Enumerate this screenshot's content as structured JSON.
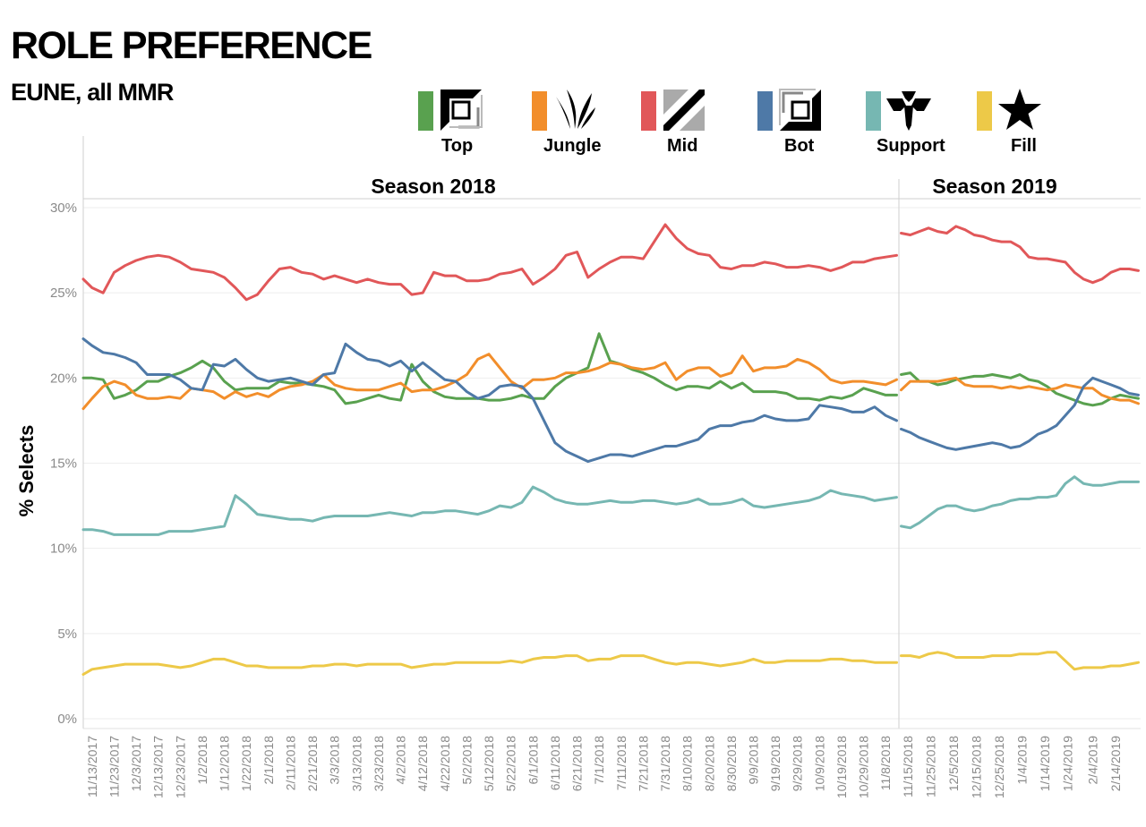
{
  "title": "ROLE PREFERENCE",
  "subtitle": "EUNE, all MMR",
  "legend": [
    {
      "label": "Top",
      "color": "#59a14f",
      "icon": "top-lane-icon"
    },
    {
      "label": "Jungle",
      "color": "#f28e2b",
      "icon": "jungle-claw-icon"
    },
    {
      "label": "Mid",
      "color": "#e15759",
      "icon": "mid-lane-icon"
    },
    {
      "label": "Bot",
      "color": "#4e79a7",
      "icon": "bot-lane-icon"
    },
    {
      "label": "Support",
      "color": "#76b7b2",
      "icon": "support-icon"
    },
    {
      "label": "Fill",
      "color": "#edc948",
      "icon": "fill-star-icon"
    }
  ],
  "chart_data": {
    "type": "line",
    "ylabel": "% Selects",
    "xlabel": "",
    "ylim": [
      0,
      30
    ],
    "yticks": [
      "0%",
      "5%",
      "10%",
      "15%",
      "20%",
      "25%",
      "30%"
    ],
    "grid": true,
    "panels": [
      {
        "title": "Season 2018",
        "x_ticks": [
          "11/13/2017",
          "11/23/2017",
          "12/3/2017",
          "12/13/2017",
          "12/23/2017",
          "1/2/2018",
          "1/12/2018",
          "1/22/2018",
          "2/1/2018",
          "2/11/2018",
          "2/21/2018",
          "3/3/2018",
          "3/13/2018",
          "3/23/2018",
          "4/2/2018",
          "4/12/2018",
          "4/22/2018",
          "5/2/2018",
          "5/12/2018",
          "5/22/2018",
          "6/1/2018",
          "6/11/2018",
          "6/21/2018",
          "7/1/2018",
          "7/11/2018",
          "7/21/2018",
          "7/31/2018",
          "8/10/2018",
          "8/20/2018",
          "8/30/2018",
          "9/9/2018",
          "9/19/2018",
          "9/29/2018",
          "10/9/2018",
          "10/19/2018",
          "10/29/2018",
          "11/8/2018"
        ],
        "x_points": [
          "11/9/2017",
          "11/13/2017",
          "11/18/2017",
          "11/23/2017",
          "11/28/2017",
          "12/3/2017",
          "12/8/2017",
          "12/13/2017",
          "12/18/2017",
          "12/23/2017",
          "12/28/2017",
          "1/2/2018",
          "1/7/2018",
          "1/12/2018",
          "1/17/2018",
          "1/22/2018",
          "1/27/2018",
          "2/1/2018",
          "2/6/2018",
          "2/11/2018",
          "2/16/2018",
          "2/21/2018",
          "2/26/2018",
          "3/3/2018",
          "3/8/2018",
          "3/13/2018",
          "3/18/2018",
          "3/23/2018",
          "3/28/2018",
          "4/2/2018",
          "4/7/2018",
          "4/12/2018",
          "4/17/2018",
          "4/22/2018",
          "4/27/2018",
          "5/2/2018",
          "5/7/2018",
          "5/12/2018",
          "5/17/2018",
          "5/22/2018",
          "5/27/2018",
          "6/1/2018",
          "6/6/2018",
          "6/11/2018",
          "6/16/2018",
          "6/21/2018",
          "6/26/2018",
          "7/1/2018",
          "7/6/2018",
          "7/11/2018",
          "7/16/2018",
          "7/21/2018",
          "7/26/2018",
          "7/31/2018",
          "8/5/2018",
          "8/10/2018",
          "8/15/2018",
          "8/20/2018",
          "8/25/2018",
          "8/30/2018",
          "9/4/2018",
          "9/9/2018",
          "9/14/2018",
          "9/19/2018",
          "9/24/2018",
          "9/29/2018",
          "10/4/2018",
          "10/9/2018",
          "10/14/2018",
          "10/19/2018",
          "10/24/2018",
          "10/29/2018",
          "11/3/2018",
          "11/8/2018",
          "11/13/2018"
        ],
        "series": [
          {
            "name": "Top",
            "color": "#59a14f",
            "values": [
              20.0,
              20.0,
              19.9,
              18.8,
              19.0,
              19.3,
              19.8,
              19.8,
              20.1,
              20.3,
              20.6,
              21.0,
              20.6,
              19.8,
              19.3,
              19.4,
              19.4,
              19.4,
              19.8,
              19.7,
              19.7,
              19.6,
              19.5,
              19.3,
              18.5,
              18.6,
              18.8,
              19.0,
              18.8,
              18.7,
              20.8,
              19.8,
              19.2,
              18.9,
              18.8,
              18.8,
              18.8,
              18.7,
              18.7,
              18.8,
              19.0,
              18.8,
              18.8,
              19.5,
              20.0,
              20.3,
              20.6,
              22.6,
              21.0,
              20.8,
              20.5,
              20.3,
              20.0,
              19.6,
              19.3,
              19.5,
              19.5,
              19.4,
              19.8,
              19.4,
              19.7,
              19.2,
              19.2,
              19.2,
              19.1,
              18.8,
              18.8,
              18.7,
              18.9,
              18.8,
              19.0,
              19.4,
              19.2,
              19.0,
              19.0
            ]
          },
          {
            "name": "Jungle",
            "color": "#f28e2b",
            "values": [
              18.2,
              18.8,
              19.5,
              19.8,
              19.6,
              19.0,
              18.8,
              18.8,
              18.9,
              18.8,
              19.4,
              19.3,
              19.2,
              18.8,
              19.2,
              18.9,
              19.1,
              18.9,
              19.3,
              19.5,
              19.6,
              19.8,
              20.2,
              19.6,
              19.4,
              19.3,
              19.3,
              19.3,
              19.5,
              19.7,
              19.2,
              19.3,
              19.3,
              19.5,
              19.8,
              20.2,
              21.1,
              21.4,
              20.6,
              19.8,
              19.4,
              19.9,
              19.9,
              20.0,
              20.3,
              20.3,
              20.4,
              20.6,
              20.9,
              20.8,
              20.6,
              20.5,
              20.6,
              20.9,
              19.9,
              20.4,
              20.6,
              20.6,
              20.1,
              20.3,
              21.3,
              20.4,
              20.6,
              20.6,
              20.7,
              21.1,
              20.9,
              20.5,
              19.9,
              19.7,
              19.8,
              19.8,
              19.7,
              19.6,
              19.9
            ]
          },
          {
            "name": "Mid",
            "color": "#e15759",
            "values": [
              25.8,
              25.3,
              25.0,
              26.2,
              26.6,
              26.9,
              27.1,
              27.2,
              27.1,
              26.8,
              26.4,
              26.3,
              26.2,
              25.9,
              25.3,
              24.6,
              24.9,
              25.7,
              26.4,
              26.5,
              26.2,
              26.1,
              25.8,
              26.0,
              25.8,
              25.6,
              25.8,
              25.6,
              25.5,
              25.5,
              24.9,
              25.0,
              26.2,
              26.0,
              26.0,
              25.7,
              25.7,
              25.8,
              26.1,
              26.2,
              26.4,
              25.5,
              25.9,
              26.4,
              27.2,
              27.4,
              25.9,
              26.4,
              26.8,
              27.1,
              27.1,
              27.0,
              28.0,
              29.0,
              28.2,
              27.6,
              27.3,
              27.2,
              26.5,
              26.4,
              26.6,
              26.6,
              26.8,
              26.7,
              26.5,
              26.5,
              26.6,
              26.5,
              26.3,
              26.5,
              26.8,
              26.8,
              27.0,
              27.1,
              27.2
            ]
          },
          {
            "name": "Bot",
            "color": "#4e79a7",
            "values": [
              22.3,
              21.9,
              21.5,
              21.4,
              21.2,
              20.9,
              20.2,
              20.2,
              20.2,
              19.9,
              19.4,
              19.3,
              20.8,
              20.7,
              21.1,
              20.5,
              20.0,
              19.8,
              19.9,
              20.0,
              19.8,
              19.6,
              20.2,
              20.3,
              22.0,
              21.5,
              21.1,
              21.0,
              20.7,
              21.0,
              20.4,
              20.9,
              20.4,
              19.9,
              19.8,
              19.2,
              18.8,
              19.0,
              19.5,
              19.6,
              19.5,
              18.8,
              17.5,
              16.2,
              15.7,
              15.4,
              15.1,
              15.3,
              15.5,
              15.5,
              15.4,
              15.6,
              15.8,
              16.0,
              16.0,
              16.2,
              16.4,
              17.0,
              17.2,
              17.2,
              17.4,
              17.5,
              17.8,
              17.6,
              17.5,
              17.5,
              17.6,
              18.4,
              18.3,
              18.2,
              18.0,
              18.0,
              18.3,
              17.8,
              17.5
            ]
          },
          {
            "name": "Support",
            "color": "#76b7b2",
            "values": [
              11.1,
              11.1,
              11.0,
              10.8,
              10.8,
              10.8,
              10.8,
              10.8,
              11.0,
              11.0,
              11.0,
              11.1,
              11.2,
              11.3,
              13.1,
              12.6,
              12.0,
              11.9,
              11.8,
              11.7,
              11.7,
              11.6,
              11.8,
              11.9,
              11.9,
              11.9,
              11.9,
              12.0,
              12.1,
              12.0,
              11.9,
              12.1,
              12.1,
              12.2,
              12.2,
              12.1,
              12.0,
              12.2,
              12.5,
              12.4,
              12.7,
              13.6,
              13.3,
              12.9,
              12.7,
              12.6,
              12.6,
              12.7,
              12.8,
              12.7,
              12.7,
              12.8,
              12.8,
              12.7,
              12.6,
              12.7,
              12.9,
              12.6,
              12.6,
              12.7,
              12.9,
              12.5,
              12.4,
              12.5,
              12.6,
              12.7,
              12.8,
              13.0,
              13.4,
              13.2,
              13.1,
              13.0,
              12.8,
              12.9,
              13.0
            ]
          },
          {
            "name": "Fill",
            "color": "#edc948",
            "values": [
              2.6,
              2.9,
              3.0,
              3.1,
              3.2,
              3.2,
              3.2,
              3.2,
              3.1,
              3.0,
              3.1,
              3.3,
              3.5,
              3.5,
              3.3,
              3.1,
              3.1,
              3.0,
              3.0,
              3.0,
              3.0,
              3.1,
              3.1,
              3.2,
              3.2,
              3.1,
              3.2,
              3.2,
              3.2,
              3.2,
              3.0,
              3.1,
              3.2,
              3.2,
              3.3,
              3.3,
              3.3,
              3.3,
              3.3,
              3.4,
              3.3,
              3.5,
              3.6,
              3.6,
              3.7,
              3.7,
              3.4,
              3.5,
              3.5,
              3.7,
              3.7,
              3.7,
              3.5,
              3.3,
              3.2,
              3.3,
              3.3,
              3.2,
              3.1,
              3.2,
              3.3,
              3.5,
              3.3,
              3.3,
              3.4,
              3.4,
              3.4,
              3.4,
              3.5,
              3.5,
              3.4,
              3.4,
              3.3,
              3.3,
              3.3
            ]
          }
        ]
      },
      {
        "title": "Season 2019",
        "x_ticks": [
          "11/15/2018",
          "11/25/2018",
          "12/5/2018",
          "12/15/2018",
          "12/25/2018",
          "1/4/2019",
          "1/14/2019",
          "1/24/2019",
          "2/4/2019",
          "2/14/2019"
        ],
        "x_points": [
          "11/12/2018",
          "11/16/2018",
          "11/20/2018",
          "11/24/2018",
          "11/28/2018",
          "12/2/2018",
          "12/6/2018",
          "12/10/2018",
          "12/14/2018",
          "12/18/2018",
          "12/22/2018",
          "12/26/2018",
          "12/30/2018",
          "1/3/2019",
          "1/7/2019",
          "1/11/2019",
          "1/15/2019",
          "1/19/2019",
          "1/23/2019",
          "1/27/2019",
          "1/31/2019",
          "2/4/2019",
          "2/8/2019",
          "2/12/2019",
          "2/16/2019",
          "2/20/2019",
          "2/24/2019"
        ],
        "series": [
          {
            "name": "Top",
            "color": "#59a14f",
            "values": [
              20.2,
              20.3,
              19.8,
              19.8,
              19.6,
              19.7,
              19.9,
              20.0,
              20.1,
              20.1,
              20.2,
              20.1,
              20.0,
              20.2,
              19.9,
              19.8,
              19.5,
              19.1,
              18.9,
              18.7,
              18.5,
              18.4,
              18.5,
              18.8,
              19.0,
              18.9,
              18.8
            ]
          },
          {
            "name": "Jungle",
            "color": "#f28e2b",
            "values": [
              19.3,
              19.8,
              19.8,
              19.8,
              19.8,
              19.9,
              20.0,
              19.6,
              19.5,
              19.5,
              19.5,
              19.4,
              19.5,
              19.4,
              19.5,
              19.4,
              19.3,
              19.4,
              19.6,
              19.5,
              19.4,
              19.4,
              19.0,
              18.8,
              18.7,
              18.7,
              18.5
            ]
          },
          {
            "name": "Mid",
            "color": "#e15759",
            "values": [
              28.5,
              28.4,
              28.6,
              28.8,
              28.6,
              28.5,
              28.9,
              28.7,
              28.4,
              28.3,
              28.1,
              28.0,
              28.0,
              27.7,
              27.1,
              27.0,
              27.0,
              26.9,
              26.8,
              26.2,
              25.8,
              25.6,
              25.8,
              26.2,
              26.4,
              26.4,
              26.3
            ]
          },
          {
            "name": "Bot",
            "color": "#4e79a7",
            "values": [
              17.0,
              16.8,
              16.5,
              16.3,
              16.1,
              15.9,
              15.8,
              15.9,
              16.0,
              16.1,
              16.2,
              16.1,
              15.9,
              16.0,
              16.3,
              16.7,
              16.9,
              17.2,
              17.8,
              18.4,
              19.5,
              20.0,
              19.8,
              19.6,
              19.4,
              19.1,
              19.0
            ]
          },
          {
            "name": "Support",
            "color": "#76b7b2",
            "values": [
              11.3,
              11.2,
              11.5,
              11.9,
              12.3,
              12.5,
              12.5,
              12.3,
              12.2,
              12.3,
              12.5,
              12.6,
              12.8,
              12.9,
              12.9,
              13.0,
              13.0,
              13.1,
              13.8,
              14.2,
              13.8,
              13.7,
              13.7,
              13.8,
              13.9,
              13.9,
              13.9
            ]
          },
          {
            "name": "Fill",
            "color": "#edc948",
            "values": [
              3.7,
              3.7,
              3.6,
              3.8,
              3.9,
              3.8,
              3.6,
              3.6,
              3.6,
              3.6,
              3.7,
              3.7,
              3.7,
              3.8,
              3.8,
              3.8,
              3.9,
              3.9,
              3.4,
              2.9,
              3.0,
              3.0,
              3.0,
              3.1,
              3.1,
              3.2,
              3.3
            ]
          }
        ]
      }
    ]
  }
}
